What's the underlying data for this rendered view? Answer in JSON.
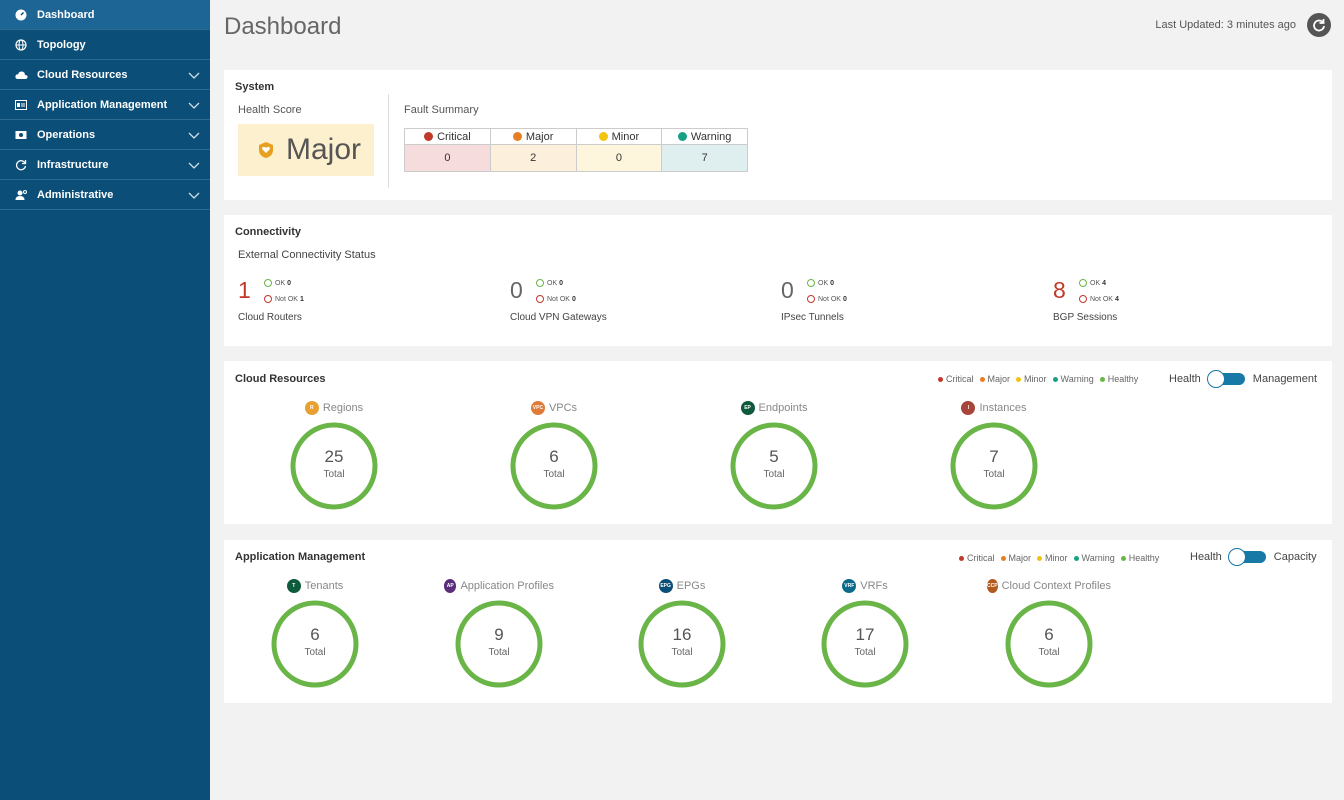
{
  "sidebar": {
    "items": [
      {
        "label": "Dashboard",
        "icon": "dashboard-gauge-icon",
        "active": true,
        "expandable": false
      },
      {
        "label": "Topology",
        "icon": "globe-icon",
        "active": false,
        "expandable": false
      },
      {
        "label": "Cloud Resources",
        "icon": "cloud-icon",
        "active": false,
        "expandable": true
      },
      {
        "label": "Application Management",
        "icon": "app-window-icon",
        "active": false,
        "expandable": true
      },
      {
        "label": "Operations",
        "icon": "operations-icon",
        "active": false,
        "expandable": true
      },
      {
        "label": "Infrastructure",
        "icon": "sync-icon",
        "active": false,
        "expandable": true
      },
      {
        "label": "Administrative",
        "icon": "admin-user-icon",
        "active": false,
        "expandable": true
      }
    ]
  },
  "header": {
    "title": "Dashboard",
    "last_updated": "Last Updated: 3 minutes ago",
    "refresh_icon": "refresh-icon"
  },
  "system": {
    "title": "System",
    "health_label": "Health Score",
    "health_value": "Major",
    "fault_label": "Fault Summary",
    "faults": [
      {
        "label": "Critical",
        "value": "0",
        "color": "#c0392b",
        "bg": "#f6dcdc"
      },
      {
        "label": "Major",
        "value": "2",
        "color": "#e67e22",
        "bg": "#fcf0dd"
      },
      {
        "label": "Minor",
        "value": "0",
        "color": "#f1c40f",
        "bg": "#fdf6dc"
      },
      {
        "label": "Warning",
        "value": "7",
        "color": "#16a085",
        "bg": "#dfeff0"
      }
    ]
  },
  "connectivity": {
    "title": "Connectivity",
    "subtitle": "External Connectivity Status",
    "ok_label": "OK",
    "notok_label": "Not OK",
    "items": [
      {
        "value": "1",
        "ok": "0",
        "notok": "1",
        "label": "Cloud Routers",
        "alert": true
      },
      {
        "value": "0",
        "ok": "0",
        "notok": "0",
        "label": "Cloud VPN Gateways",
        "alert": false
      },
      {
        "value": "0",
        "ok": "0",
        "notok": "0",
        "label": "IPsec Tunnels",
        "alert": false
      },
      {
        "value": "8",
        "ok": "4",
        "notok": "4",
        "label": "BGP Sessions",
        "alert": true
      }
    ]
  },
  "legend": [
    {
      "label": "Critical",
      "color": "#c0392b"
    },
    {
      "label": "Major",
      "color": "#e67e22"
    },
    {
      "label": "Minor",
      "color": "#f1c40f"
    },
    {
      "label": "Warning",
      "color": "#16a085"
    },
    {
      "label": "Healthy",
      "color": "#6ab547"
    }
  ],
  "cloud_resources": {
    "title": "Cloud Resources",
    "toggle_left": "Health",
    "toggle_right": "Management",
    "total_label": "Total",
    "items": [
      {
        "label": "Regions",
        "badge": "R",
        "badge_color": "#e8a030",
        "value": "25"
      },
      {
        "label": "VPCs",
        "badge": "VPC",
        "badge_color": "#e07b39",
        "value": "6"
      },
      {
        "label": "Endpoints",
        "badge": "EP",
        "badge_color": "#0e5a3c",
        "value": "5"
      },
      {
        "label": "Instances",
        "badge": "I",
        "badge_color": "#a8453b",
        "value": "7"
      }
    ]
  },
  "app_management": {
    "title": "Application Management",
    "toggle_left": "Health",
    "toggle_right": "Capacity",
    "total_label": "Total",
    "items": [
      {
        "label": "Tenants",
        "badge": "T",
        "badge_color": "#0e5a3c",
        "value": "6"
      },
      {
        "label": "Application Profiles",
        "badge": "AP",
        "badge_color": "#5b2e7a",
        "value": "9"
      },
      {
        "label": "EPGs",
        "badge": "EPG",
        "badge_color": "#0b4e77",
        "value": "16"
      },
      {
        "label": "VRFs",
        "badge": "VRF",
        "badge_color": "#0b6a8a",
        "value": "17"
      },
      {
        "label": "Cloud Context Profiles",
        "badge": "CCP",
        "badge_color": "#b35a1f",
        "value": "6"
      }
    ]
  },
  "colors": {
    "sidebar_bg": "#0b4e77",
    "donut_healthy": "#6ab547",
    "toggle": "#1679a6"
  }
}
